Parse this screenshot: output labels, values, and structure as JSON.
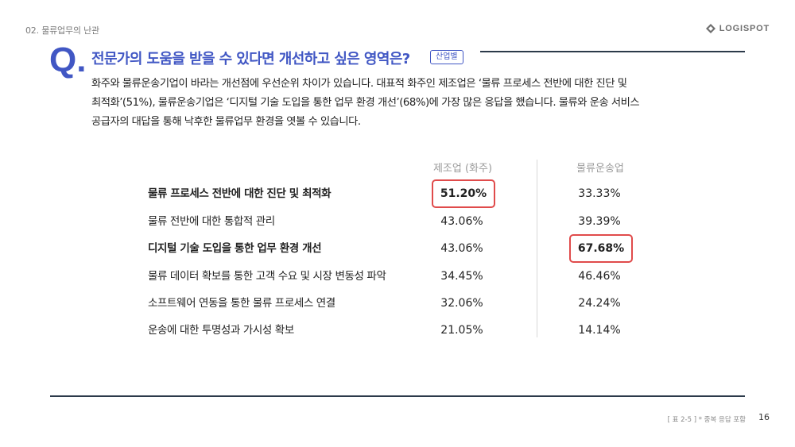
{
  "header": {
    "section_label": "02. 물류업무의 난관",
    "logo_text": "LOGISPOT"
  },
  "question": {
    "mark": "Q",
    "dot": ".",
    "title": "전문가의 도움을 받을 수 있다면 개선하고 싶은 영역은?",
    "tag": "산업별"
  },
  "description": [
    "화주와 물류운송기업이 바라는 개선점에 우선순위 차이가 있습니다. 대표적 화주인 제조업은 ‘물류 프로세스 전반에 대한 진단 및",
    "최적화’(51%), 물류운송기업은 ‘디지털 기술 도입을 통한 업무 환경 개선’(68%)에 가장 많은 응답을 했습니다. 물류와 운송 서비스",
    "공급자의 대답을 통해 낙후한 물류업무 환경을 엿볼 수 있습니다."
  ],
  "table": {
    "columns": [
      "제조업 (화주)",
      "물류운송업"
    ],
    "rows": [
      {
        "label": "물류 프로세스 전반에 대한 진단 및 최적화",
        "manufacturing": "51.20%",
        "logistics": "33.33%"
      },
      {
        "label": "물류 전반에 대한 통합적 관리",
        "manufacturing": "43.06%",
        "logistics": "39.39%"
      },
      {
        "label": "디지털 기술 도입을 통한 업무 환경 개선",
        "manufacturing": "43.06%",
        "logistics": "67.68%"
      },
      {
        "label": "물류 데이터 확보를 통한 고객 수요 및 시장 변동성 파악",
        "manufacturing": "34.45%",
        "logistics": "46.46%"
      },
      {
        "label": "소프트웨어 연동을 통한 물류 프로세스 연결",
        "manufacturing": "32.06%",
        "logistics": "24.24%"
      },
      {
        "label": "운송에 대한 투명성과 가시성 확보",
        "manufacturing": "21.05%",
        "logistics": "14.14%"
      }
    ]
  },
  "footer": {
    "note": "[ 표 2-5 ] * 중복 응답 포함",
    "page_number": "16"
  },
  "colors": {
    "accent": "#4157c4",
    "highlight": "#e04b4b",
    "rule": "#2c3a4a"
  }
}
